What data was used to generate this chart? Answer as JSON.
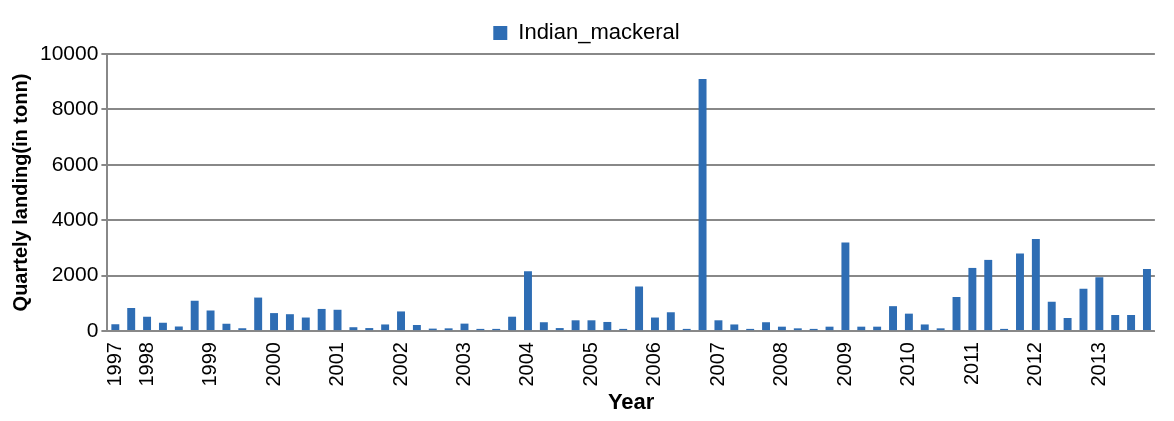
{
  "chart_data": {
    "type": "bar",
    "xlabel": "Year",
    "ylabel": "Quartely landing(in tonn)",
    "categories": [
      "1997",
      null,
      "1998",
      null,
      null,
      null,
      "1999",
      null,
      null,
      null,
      "2000",
      null,
      null,
      null,
      "2001",
      null,
      null,
      null,
      "2002",
      null,
      null,
      null,
      "2003",
      null,
      null,
      null,
      "2004",
      null,
      null,
      null,
      "2005",
      null,
      null,
      null,
      "2006",
      null,
      null,
      null,
      "2007",
      null,
      null,
      null,
      "2008",
      null,
      null,
      null,
      "2009",
      null,
      null,
      null,
      "2010",
      null,
      null,
      null,
      "2011",
      null,
      null,
      null,
      "2012",
      null,
      null,
      null,
      "2013",
      null,
      null,
      null
    ],
    "series": [
      {
        "name": "Indian_mackeral",
        "color": "#2e6db4",
        "values": [
          250,
          830,
          520,
          300,
          170,
          1100,
          740,
          270,
          100,
          1210,
          650,
          610,
          490,
          800,
          770,
          140,
          110,
          240,
          710,
          220,
          90,
          100,
          270,
          80,
          80,
          520,
          2160,
          320,
          110,
          390,
          390,
          330,
          80,
          1610,
          490,
          680,
          80,
          9100,
          390,
          240,
          80,
          320,
          160,
          100,
          80,
          160,
          3200,
          160,
          160,
          900,
          630,
          240,
          100,
          1230,
          2280,
          2570,
          80,
          2800,
          3320,
          1060,
          470,
          1530,
          1940,
          580,
          580,
          2240
        ]
      }
    ],
    "ylim": [
      0,
      10000
    ],
    "yticks": [
      0,
      2000,
      4000,
      6000,
      8000,
      10000
    ],
    "grid": "y",
    "legend": "top"
  }
}
